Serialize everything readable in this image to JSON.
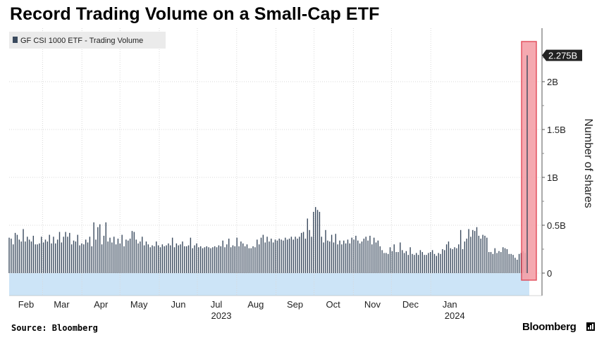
{
  "title": "Record Trading Volume on a Small-Cap ETF",
  "source": "Source: Bloomberg",
  "brand": "Bloomberg",
  "colors": {
    "bar": "#3a4a5e",
    "highlight_fill": "#f4a0a8",
    "highlight_stroke": "#e0404f",
    "band": "#cce4f7",
    "grid": "#d9d9d9"
  },
  "chart_data": {
    "type": "bar",
    "series": [
      {
        "name": "GF CSI 1000 ETF - Trading Volume",
        "unit": "shares"
      }
    ],
    "ylabel": "Number of shares",
    "ylim": [
      -250000000,
      2500000000
    ],
    "yticks": [
      {
        "value": 0,
        "label": "0"
      },
      {
        "value": 500000000,
        "label": "0.5B"
      },
      {
        "value": 1000000000,
        "label": "1B"
      },
      {
        "value": 1500000000,
        "label": "1.5B"
      },
      {
        "value": 2000000000,
        "label": "2B"
      }
    ],
    "xticks": [
      {
        "day": 0,
        "label": "Feb"
      },
      {
        "day": 28,
        "label": "Mar"
      },
      {
        "day": 59,
        "label": "Apr"
      },
      {
        "day": 89,
        "label": "May"
      },
      {
        "day": 120,
        "label": "Jun"
      },
      {
        "day": 150,
        "label": "Jul"
      },
      {
        "day": 181,
        "label": "Aug"
      },
      {
        "day": 212,
        "label": "Sep"
      },
      {
        "day": 242,
        "label": "Oct"
      },
      {
        "day": 273,
        "label": "Nov"
      },
      {
        "day": 303,
        "label": "Dec"
      },
      {
        "day": 334,
        "label": "Jan"
      }
    ],
    "year_labels": [
      {
        "day": 150,
        "label": "2023"
      },
      {
        "day": 334,
        "label": "2024"
      }
    ],
    "last_value_label": "2.275B",
    "last_value": 2275000000,
    "grid": true,
    "legend": "top-left",
    "values_millions": [
      370,
      360,
      300,
      420,
      400,
      350,
      330,
      460,
      330,
      380,
      350,
      330,
      390,
      300,
      300,
      310,
      380,
      320,
      350,
      330,
      400,
      310,
      380,
      310,
      350,
      430,
      320,
      380,
      430,
      380,
      420,
      300,
      340,
      330,
      400,
      290,
      310,
      300,
      350,
      320,
      380,
      280,
      530,
      350,
      480,
      510,
      300,
      390,
      530,
      330,
      370,
      320,
      380,
      300,
      360,
      310,
      400,
      280,
      350,
      340,
      360,
      440,
      430,
      350,
      310,
      330,
      380,
      290,
      330,
      300,
      270,
      290,
      280,
      330,
      290,
      270,
      300,
      280,
      290,
      310,
      290,
      370,
      270,
      310,
      290,
      300,
      330,
      280,
      280,
      290,
      370,
      260,
      290,
      310,
      270,
      280,
      260,
      270,
      280,
      270,
      260,
      270,
      280,
      270,
      290,
      280,
      340,
      270,
      300,
      360,
      270,
      290,
      280,
      370,
      280,
      330,
      310,
      280,
      300,
      260,
      260,
      280,
      270,
      350,
      300,
      370,
      400,
      320,
      380,
      330,
      360,
      320,
      350,
      340,
      360,
      350,
      340,
      370,
      350,
      360,
      380,
      350,
      380,
      360,
      380,
      420,
      430,
      360,
      570,
      450,
      380,
      640,
      690,
      660,
      640,
      380,
      320,
      450,
      340,
      330,
      400,
      320,
      410,
      300,
      340,
      300,
      340,
      310,
      350,
      310,
      370,
      350,
      390,
      340,
      310,
      330,
      360,
      380,
      340,
      390,
      300,
      370,
      320,
      340,
      280,
      240,
      210,
      210,
      200,
      270,
      230,
      300,
      220,
      220,
      320,
      240,
      210,
      230,
      190,
      270,
      200,
      190,
      210,
      190,
      240,
      220,
      190,
      190,
      210,
      220,
      240,
      200,
      180,
      210,
      200,
      250,
      240,
      300,
      330,
      260,
      250,
      270,
      260,
      300,
      450,
      250,
      330,
      360,
      460,
      380,
      450,
      440,
      480,
      390,
      360,
      400,
      390,
      370,
      220,
      220,
      200,
      260,
      210,
      230,
      220,
      270,
      260,
      250,
      200,
      200,
      190,
      160,
      140,
      200,
      210,
      230,
      210,
      2275
    ]
  }
}
